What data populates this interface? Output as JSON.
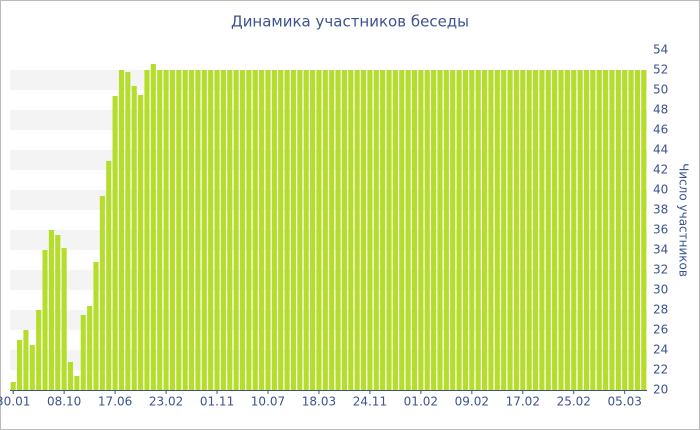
{
  "chart_data": {
    "type": "bar",
    "title": "Динамика участников беседы",
    "y_label": "Число участников",
    "categories": [
      "30.01",
      null,
      null,
      null,
      null,
      null,
      null,
      null,
      "08.10",
      null,
      null,
      null,
      null,
      null,
      null,
      null,
      "17.06",
      null,
      null,
      null,
      null,
      null,
      null,
      null,
      "23.02",
      null,
      null,
      null,
      null,
      null,
      null,
      null,
      "01.11",
      null,
      null,
      null,
      null,
      null,
      null,
      null,
      "10.07",
      null,
      null,
      null,
      null,
      null,
      null,
      null,
      "18.03",
      null,
      null,
      null,
      null,
      null,
      null,
      null,
      "24.11",
      null,
      null,
      null,
      null,
      null,
      null,
      null,
      "01.02",
      null,
      null,
      null,
      null,
      null,
      null,
      null,
      "09.02",
      null,
      null,
      null,
      null,
      null,
      null,
      null,
      "17.02",
      null,
      null,
      null,
      null,
      null,
      null,
      null,
      "25.02",
      null,
      null,
      null,
      null,
      null,
      null,
      null,
      "05.03",
      null,
      null,
      null
    ],
    "values": [
      20.8,
      25,
      26,
      24.5,
      28,
      34,
      36,
      35.5,
      34.2,
      22.8,
      21.4,
      27.5,
      28.4,
      32.8,
      39.4,
      42.9,
      49.4,
      52,
      51.8,
      50.4,
      49.5,
      52,
      52.6,
      52,
      52,
      52,
      52,
      52,
      52,
      52,
      52,
      52,
      52,
      52,
      52,
      52,
      52,
      52,
      52,
      52,
      52,
      52,
      52,
      52,
      52,
      52,
      52,
      52,
      52,
      52,
      52,
      52,
      52,
      52,
      52,
      52,
      52,
      52,
      52,
      52,
      52,
      52,
      52,
      52,
      52,
      52,
      52,
      52,
      52,
      52,
      52,
      52,
      52,
      52,
      52,
      52,
      52,
      52,
      52,
      52,
      52,
      52,
      52,
      52,
      52,
      52,
      52,
      52,
      52,
      52,
      52,
      52,
      52,
      52,
      52,
      52,
      52,
      52,
      52,
      52
    ],
    "color": "#b5dd2b",
    "ylim": [
      20,
      54
    ],
    "yticks": [
      20,
      22,
      24,
      26,
      28,
      30,
      32,
      34,
      36,
      38,
      40,
      42,
      44,
      46,
      48,
      50,
      52,
      54
    ],
    "grid": true
  }
}
